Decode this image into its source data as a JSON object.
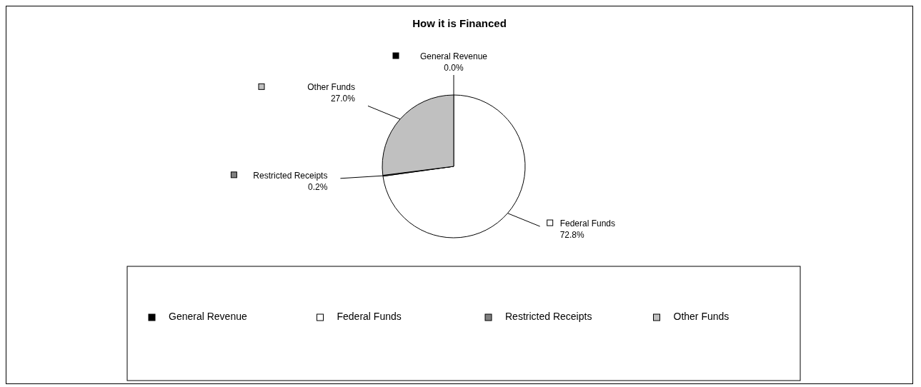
{
  "chart_data": {
    "type": "pie",
    "title": "How it is Financed",
    "categories": [
      "General Revenue",
      "Federal Funds",
      "Restricted Receipts",
      "Other Funds"
    ],
    "values": [
      0.0,
      72.8,
      0.2,
      27.0
    ],
    "colors": [
      "#000000",
      "#ffffff",
      "#808080",
      "#c0c0c0"
    ],
    "value_labels": [
      "0.0%",
      "72.8%",
      "0.2%",
      "27.0%"
    ],
    "legend": "bottom"
  }
}
